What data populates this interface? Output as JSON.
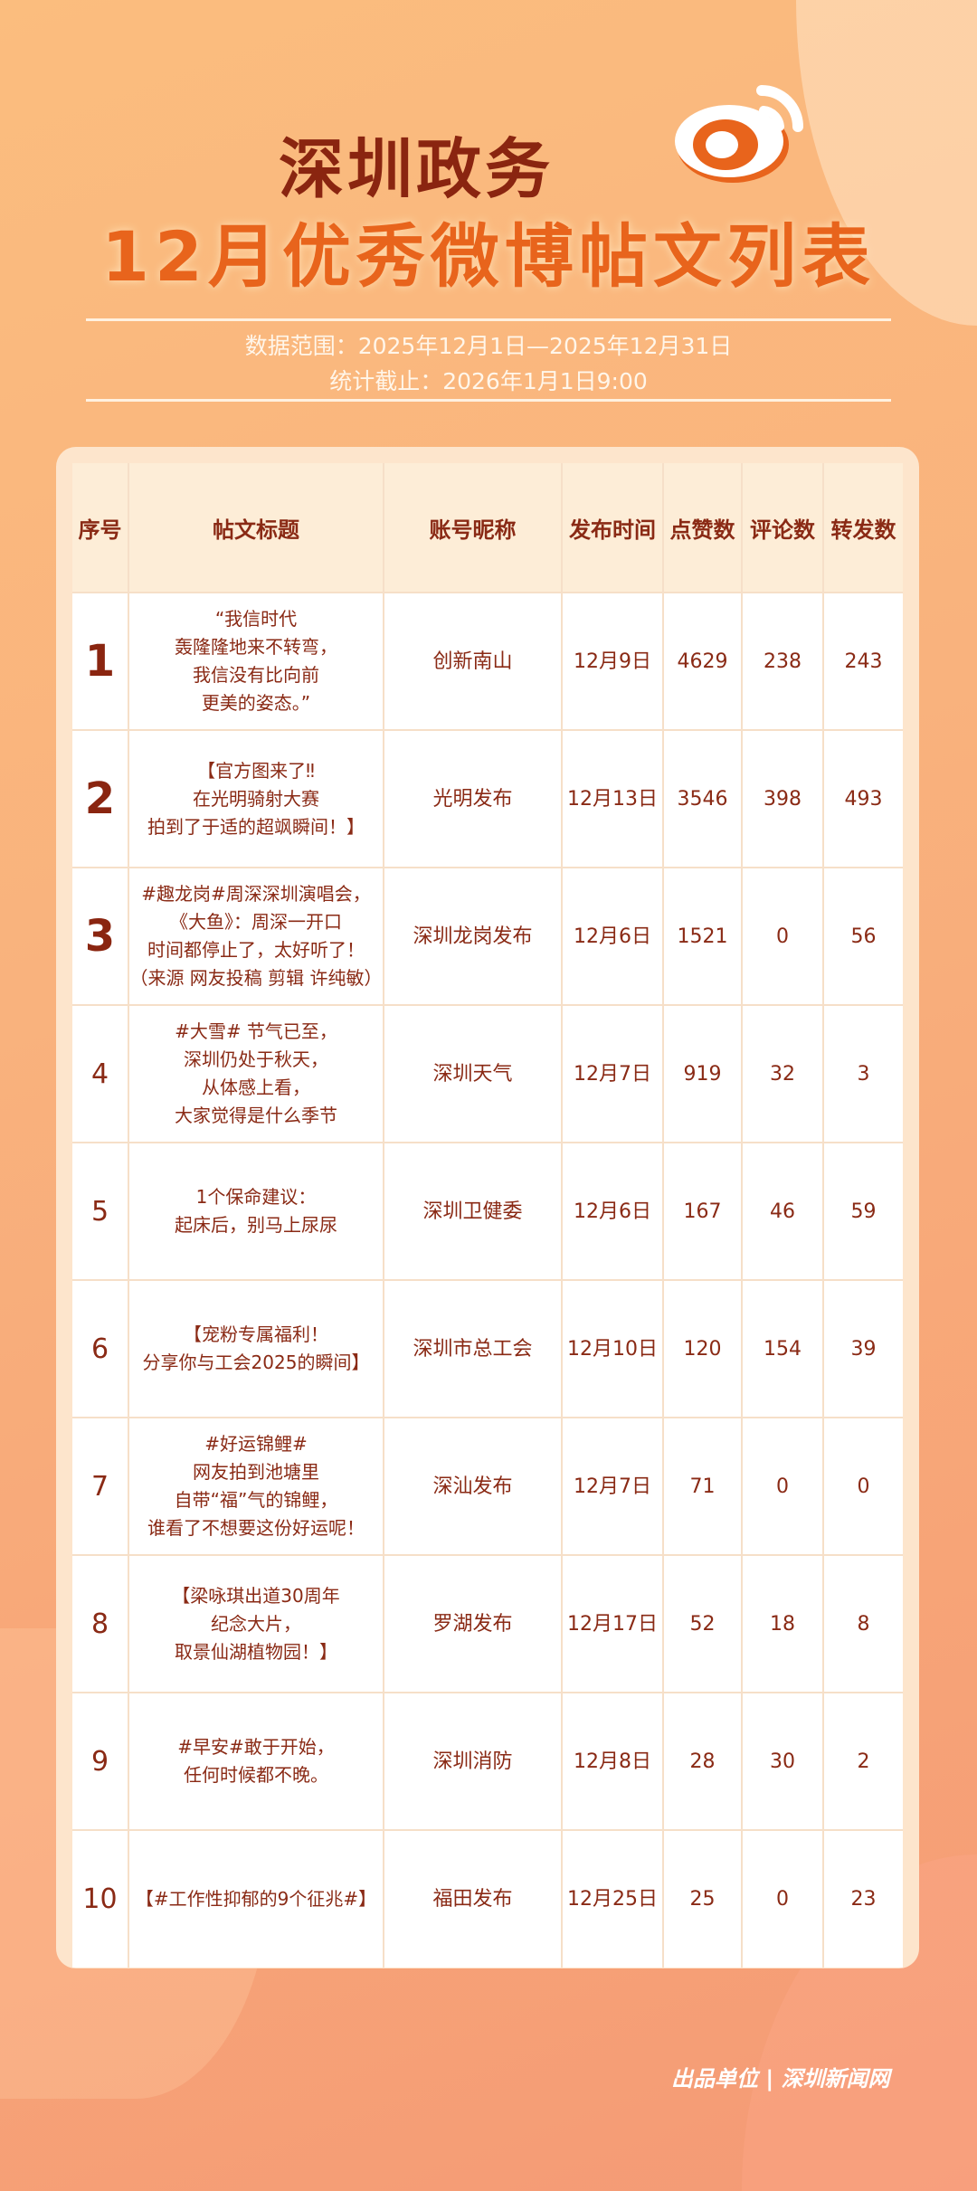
{
  "header": {
    "title_line1": "深圳政务",
    "title_line2": "12月优秀微博帖文列表",
    "logo": "weibo-logo",
    "data_range": "数据范围：2025年12月1日—2025年12月31日",
    "cutoff": "统计截止：2026年1月1日9:00"
  },
  "table": {
    "columns": [
      "序号",
      "帖文标题",
      "账号昵称",
      "发布时间",
      "点赞数",
      "评论数",
      "转发数"
    ],
    "rows": [
      {
        "rank": "1",
        "title": "“我信时代\n轰隆隆地来不转弯，\n我信没有比向前\n更美的姿态。”",
        "account": "创新南山",
        "date": "12月9日",
        "likes": "4629",
        "comments": "238",
        "reposts": "243"
      },
      {
        "rank": "2",
        "title": "【官方图来了‼\n在光明骑射大赛\n拍到了于适的超飒瞬间！】",
        "account": "光明发布",
        "date": "12月13日",
        "likes": "3546",
        "comments": "398",
        "reposts": "493"
      },
      {
        "rank": "3",
        "title": "#趣龙岗#周深深圳演唱会，\n《大鱼》：周深一开口\n时间都停止了，太好听了！\n（来源 网友投稿 剪辑 许纯敏）",
        "account": "深圳龙岗发布",
        "date": "12月6日",
        "likes": "1521",
        "comments": "0",
        "reposts": "56"
      },
      {
        "rank": "4",
        "title": "#大雪# 节气已至，\n深圳仍处于秋天，\n从体感上看，\n大家觉得是什么季节",
        "account": "深圳天气",
        "date": "12月7日",
        "likes": "919",
        "comments": "32",
        "reposts": "3"
      },
      {
        "rank": "5",
        "title": "1个保命建议：\n起床后，别马上尿尿",
        "account": "深圳卫健委",
        "date": "12月6日",
        "likes": "167",
        "comments": "46",
        "reposts": "59"
      },
      {
        "rank": "6",
        "title": "【宠粉专属福利！\n分享你与工会2025的瞬间】",
        "account": "深圳市总工会",
        "date": "12月10日",
        "likes": "120",
        "comments": "154",
        "reposts": "39"
      },
      {
        "rank": "7",
        "title": "#好运锦鲤#\n网友拍到池塘里\n自带“福”气的锦鲤，\n谁看了不想要这份好运呢！",
        "account": "深汕发布",
        "date": "12月7日",
        "likes": "71",
        "comments": "0",
        "reposts": "0"
      },
      {
        "rank": "8",
        "title": "【梁咏琪出道30周年\n纪念大片，\n取景仙湖植物园！】",
        "account": "罗湖发布",
        "date": "12月17日",
        "likes": "52",
        "comments": "18",
        "reposts": "8"
      },
      {
        "rank": "9",
        "title": "#早安#敢于开始，\n任何时候都不晚。",
        "account": "深圳消防",
        "date": "12月8日",
        "likes": "28",
        "comments": "30",
        "reposts": "2"
      },
      {
        "rank": "10",
        "title": "【#工作性抑郁的9个征兆#】",
        "account": "福田发布",
        "date": "12月25日",
        "likes": "25",
        "comments": "0",
        "reposts": "23"
      }
    ]
  },
  "footer": {
    "credit": "出品单位 | 深圳新闻网"
  }
}
